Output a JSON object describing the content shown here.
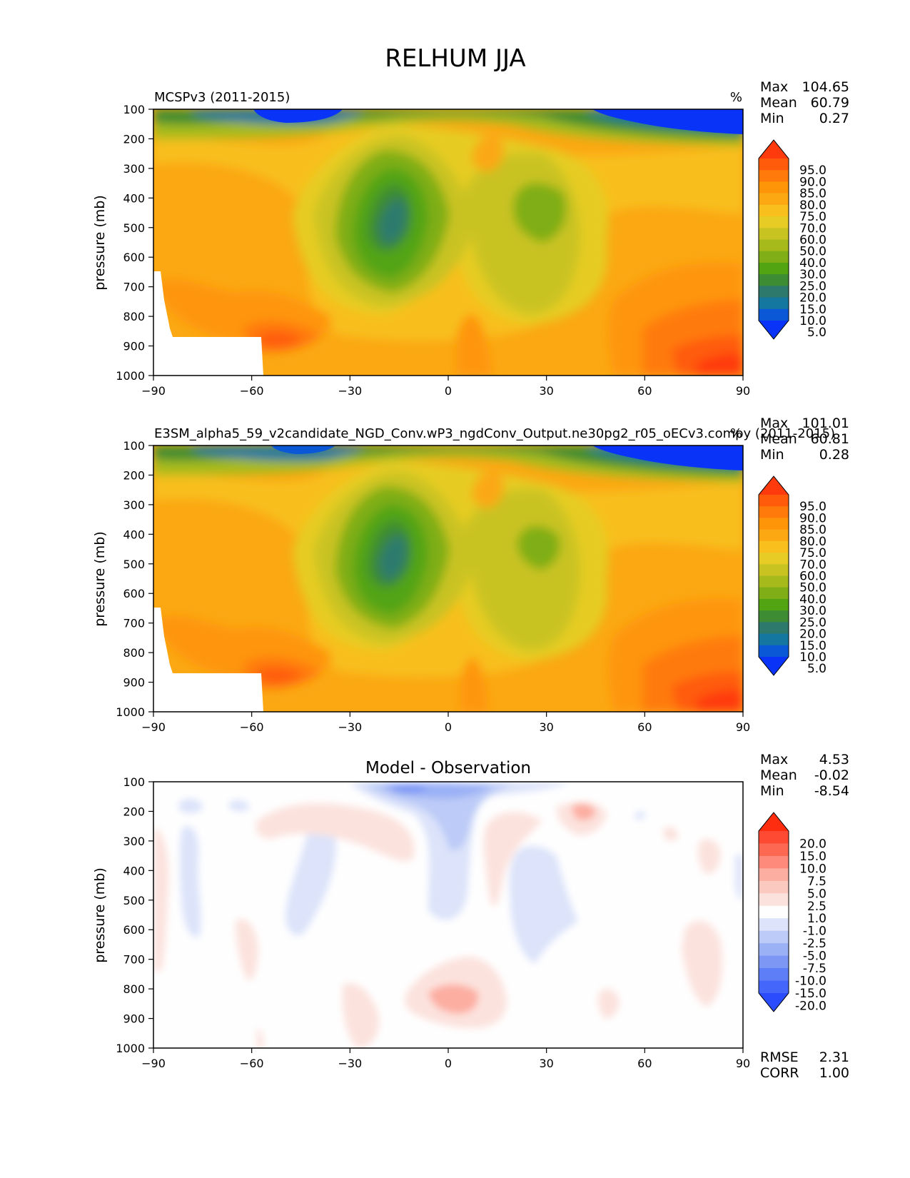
{
  "figure": {
    "title": "RELHUM JJA"
  },
  "chart_data": [
    {
      "type": "heatmap",
      "name": "reference",
      "title": "MCSPv3 (2011-2015)",
      "units": "%",
      "xlabel": "",
      "ylabel": "pressure (mb)",
      "xlim": [
        -90,
        90
      ],
      "ylim": [
        1000,
        100
      ],
      "x_ticks": [
        "−90",
        "−60",
        "−30",
        "0",
        "30",
        "60",
        "90"
      ],
      "y_ticks": [
        "100",
        "200",
        "300",
        "400",
        "500",
        "600",
        "700",
        "800",
        "900",
        "1000"
      ],
      "stats": [
        {
          "label": "Max",
          "value": "104.65"
        },
        {
          "label": "Mean",
          "value": "60.79"
        },
        {
          "label": "Min",
          "value": "0.27"
        }
      ],
      "colorbar": {
        "labels": [
          "95.0",
          "90.0",
          "85.0",
          "80.0",
          "75.0",
          "70.0",
          "60.0",
          "50.0",
          "40.0",
          "30.0",
          "25.0",
          "20.0",
          "15.0",
          "10.0",
          "5.0"
        ],
        "colors": [
          "#ff3a0d",
          "#ff5b0a",
          "#ff7a0a",
          "#fe9508",
          "#fba813",
          "#f8bf1d",
          "#e6cc24",
          "#c9c322",
          "#a6bb1b",
          "#7fae16",
          "#52a412",
          "#3d8c33",
          "#2d7a6d",
          "#1477a0",
          "#0b58d6",
          "#0934f8"
        ]
      }
    },
    {
      "type": "heatmap",
      "name": "test",
      "title": "E3SM_alpha5_59_v2candidate_NGD_Conv.wP3_ngdConv_Output.ne30pg2_r05_oECv3.compy (2011-2015)",
      "units": "%",
      "xlabel": "",
      "ylabel": "pressure (mb)",
      "xlim": [
        -90,
        90
      ],
      "ylim": [
        1000,
        100
      ],
      "x_ticks": [
        "−90",
        "−60",
        "−30",
        "0",
        "30",
        "60",
        "90"
      ],
      "y_ticks": [
        "100",
        "200",
        "300",
        "400",
        "500",
        "600",
        "700",
        "800",
        "900",
        "1000"
      ],
      "stats": [
        {
          "label": "Max",
          "value": "101.01"
        },
        {
          "label": "Mean",
          "value": "60.81"
        },
        {
          "label": "Min",
          "value": "0.28"
        }
      ],
      "colorbar": {
        "labels": [
          "95.0",
          "90.0",
          "85.0",
          "80.0",
          "75.0",
          "70.0",
          "60.0",
          "50.0",
          "40.0",
          "30.0",
          "25.0",
          "20.0",
          "15.0",
          "10.0",
          "5.0"
        ],
        "colors": [
          "#ff3a0d",
          "#ff5b0a",
          "#ff7a0a",
          "#fe9508",
          "#fba813",
          "#f8bf1d",
          "#e6cc24",
          "#c9c322",
          "#a6bb1b",
          "#7fae16",
          "#52a412",
          "#3d8c33",
          "#2d7a6d",
          "#1477a0",
          "#0b58d6",
          "#0934f8"
        ]
      }
    },
    {
      "type": "heatmap",
      "name": "diff",
      "title": "Model - Observation",
      "units": "",
      "xlabel": "",
      "ylabel": "pressure (mb)",
      "xlim": [
        -90,
        90
      ],
      "ylim": [
        1000,
        100
      ],
      "x_ticks": [
        "−90",
        "−60",
        "−30",
        "0",
        "30",
        "60",
        "90"
      ],
      "y_ticks": [
        "100",
        "200",
        "300",
        "400",
        "500",
        "600",
        "700",
        "800",
        "900",
        "1000"
      ],
      "stats": [
        {
          "label": "Max",
          "value": "4.53"
        },
        {
          "label": "Mean",
          "value": "-0.02"
        },
        {
          "label": "Min",
          "value": "-8.54"
        }
      ],
      "extra_stats": [
        {
          "label": "RMSE",
          "value": "2.31"
        },
        {
          "label": "CORR",
          "value": "1.00"
        }
      ],
      "colorbar": {
        "labels": [
          "20.0",
          "15.0",
          "10.0",
          "7.5",
          "5.0",
          "2.5",
          "1.0",
          "-1.0",
          "-2.5",
          "-5.0",
          "-7.5",
          "-10.0",
          "-15.0",
          "-20.0"
        ],
        "colors": [
          "#ff2d10",
          "#fe4a32",
          "#fc6852",
          "#fd8a7a",
          "#fcaea1",
          "#fbc9c0",
          "#fce2dd",
          "#fefefe",
          "#dce3fa",
          "#bccbf7",
          "#9bb1f6",
          "#7d97f5",
          "#5e7ef8",
          "#4466fa",
          "#2a4cfc"
        ]
      }
    }
  ]
}
